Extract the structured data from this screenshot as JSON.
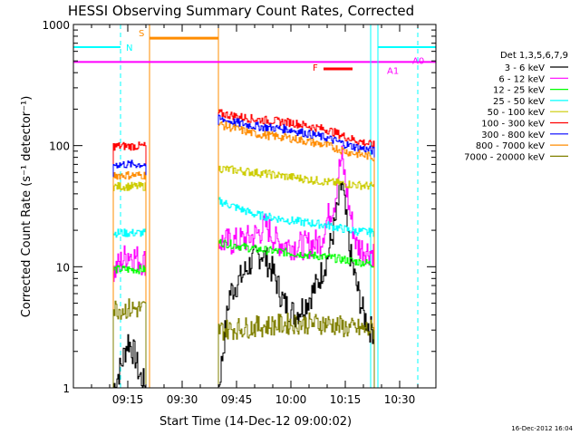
{
  "chart_data": {
    "type": "line",
    "title": "HESSI Observing Summary Count Rates, Corrected",
    "xlabel": "Start Time (14-Dec-12 09:00:02)",
    "ylabel": "Corrected Count Rate (s⁻¹ detector⁻¹)",
    "xlim": [
      "09:00",
      "10:40"
    ],
    "ylim": [
      1,
      1000
    ],
    "yscale": "log",
    "x_ticks": [
      "09:15",
      "09:30",
      "09:45",
      "10:00",
      "10:15",
      "10:30"
    ],
    "y_ticks": [
      "1",
      "10",
      "100",
      "1000"
    ],
    "legend_title": "Det 1,3,5,6,7,9",
    "legend_position": "right",
    "footer_date": "16-Dec-2012 16:04",
    "series": [
      {
        "name": "3 - 6 keV",
        "color": "#000000",
        "segments": [
          {
            "x": [
              "09:11",
              "09:13",
              "09:15",
              "09:17",
              "09:18",
              "09:20"
            ],
            "y": [
              1,
              1.5,
              2.5,
              1.8,
              1.3,
              1
            ]
          },
          {
            "x": [
              "09:40",
              "09:43",
              "09:46",
              "09:49",
              "09:52",
              "09:55",
              "09:58",
              "10:01",
              "10:04",
              "10:07",
              "10:10",
              "10:12",
              "10:14",
              "10:16",
              "10:18",
              "10:20",
              "10:22",
              "10:23"
            ],
            "y": [
              1,
              6,
              8,
              11,
              13,
              9,
              5,
              4,
              5,
              7,
              12,
              22,
              50,
              14,
              7,
              4,
              3,
              3
            ]
          }
        ]
      },
      {
        "name": "6 - 12 keV",
        "color": "#ff00ff",
        "segments": [
          {
            "x": [
              "09:11",
              "09:13",
              "09:15",
              "09:17",
              "09:19",
              "09:20"
            ],
            "y": [
              9,
              11,
              13,
              12,
              11,
              11
            ]
          },
          {
            "x": [
              "09:40",
              "09:44",
              "09:48",
              "09:51",
              "09:53",
              "09:56",
              "10:00",
              "10:04",
              "10:08",
              "10:10",
              "10:12",
              "10:13",
              "10:14",
              "10:16",
              "10:18",
              "10:20",
              "10:23"
            ],
            "y": [
              16,
              16,
              17,
              19,
              22,
              16,
              15,
              15,
              16,
              25,
              35,
              60,
              80,
              30,
              15,
              14,
              13
            ]
          }
        ]
      },
      {
        "name": "12 - 25 keV",
        "color": "#00ff00",
        "segments": [
          {
            "x": [
              "09:11",
              "09:15",
              "09:20"
            ],
            "y": [
              9.5,
              9.5,
              9.5
            ]
          },
          {
            "x": [
              "09:40",
              "09:50",
              "10:00",
              "10:10",
              "10:14",
              "10:18",
              "10:23"
            ],
            "y": [
              16,
              14,
              13,
              12,
              11.5,
              11,
              10.5
            ]
          }
        ]
      },
      {
        "name": "25 - 50 keV",
        "color": "#00ffff",
        "segments": [
          {
            "x": [
              "09:11",
              "09:15",
              "09:20"
            ],
            "y": [
              19,
              19,
              19
            ]
          },
          {
            "x": [
              "09:40",
              "09:50",
              "10:00",
              "10:10",
              "10:16",
              "10:23"
            ],
            "y": [
              35,
              27,
              24,
              22,
              20,
              19
            ]
          }
        ]
      },
      {
        "name": "50 - 100 keV",
        "color": "#cccc00",
        "segments": [
          {
            "x": [
              "09:11",
              "09:15",
              "09:20"
            ],
            "y": [
              46,
              46,
              46
            ]
          },
          {
            "x": [
              "09:40",
              "09:50",
              "10:00",
              "10:10",
              "10:16",
              "10:23"
            ],
            "y": [
              65,
              60,
              55,
              50,
              48,
              46
            ]
          }
        ]
      },
      {
        "name": "100 - 300 keV",
        "color": "#ff0000",
        "segments": [
          {
            "x": [
              "09:11",
              "09:15",
              "09:20"
            ],
            "y": [
              99,
              99,
              99
            ]
          },
          {
            "x": [
              "09:40",
              "09:50",
              "10:00",
              "10:10",
              "10:16",
              "10:23"
            ],
            "y": [
              185,
              165,
              155,
              135,
              115,
              100
            ]
          }
        ]
      },
      {
        "name": "300 - 800 keV",
        "color": "#0000ff",
        "segments": [
          {
            "x": [
              "09:11",
              "09:15",
              "09:20"
            ],
            "y": [
              70,
              70,
              70
            ]
          },
          {
            "x": [
              "09:40",
              "09:50",
              "10:00",
              "10:10",
              "10:16",
              "10:23"
            ],
            "y": [
              165,
              145,
              135,
              115,
              100,
              90
            ]
          }
        ]
      },
      {
        "name": "800 - 7000 keV",
        "color": "#ff8c00",
        "segments": [
          {
            "x": [
              "09:11",
              "09:15",
              "09:20"
            ],
            "y": [
              57,
              57,
              57
            ]
          },
          {
            "x": [
              "09:40",
              "09:50",
              "10:00",
              "10:10",
              "10:16",
              "10:23"
            ],
            "y": [
              150,
              125,
              115,
              100,
              88,
              80
            ]
          }
        ]
      },
      {
        "name": "7000 - 20000 keV",
        "color": "#808000",
        "segments": [
          {
            "x": [
              "09:11",
              "09:15",
              "09:20"
            ],
            "y": [
              4.5,
              4.5,
              4.5
            ]
          },
          {
            "x": [
              "09:40",
              "09:50",
              "10:00",
              "10:10",
              "10:16",
              "10:23"
            ],
            "y": [
              3,
              3.2,
              3.4,
              3.4,
              3.1,
              3
            ]
          }
        ]
      }
    ],
    "annotations": [
      {
        "label": "N",
        "color": "#00ffff",
        "x_from": "09:00",
        "x_to": "09:13",
        "y": 650,
        "lines": [
          "09:13"
        ],
        "dashed": true
      },
      {
        "label": "S",
        "color": "#ff8c00",
        "x_from": "09:21",
        "x_to": "09:40",
        "y": 770,
        "lines": [
          "09:21",
          "09:40"
        ],
        "dashed": false
      },
      {
        "label": "F",
        "color": "#ff0000",
        "x_from": "10:09",
        "x_to": "10:17",
        "y": 430
      },
      {
        "label": "A1",
        "color": "#ff00ff",
        "x_from": "09:00",
        "x_to": "10:40",
        "y": 490
      },
      {
        "label": "A0",
        "color": "#ff00ff",
        "y": 490
      },
      {
        "label": "",
        "color": "#00ffff",
        "x_from": "10:24",
        "x_to": "10:40",
        "y": 650,
        "lines": [
          "10:22",
          "10:24",
          "10:35"
        ],
        "dashed": true
      }
    ]
  }
}
